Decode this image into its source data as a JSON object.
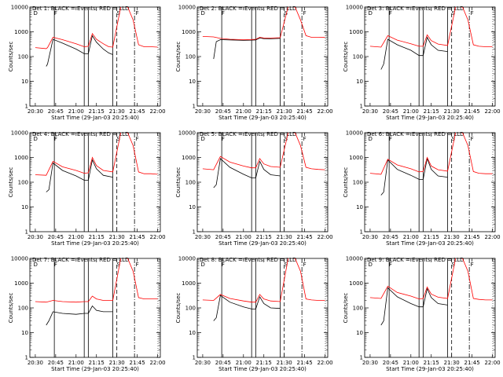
{
  "figure": {
    "x_axis_label": "Start Time (29-Jan-03 20:25:40)",
    "y_axis_label": "Counts/sec",
    "x_tick_labels": [
      "20:30",
      "20:45",
      "21:00",
      "21:15",
      "21:30",
      "21:45",
      "22:00"
    ],
    "y_tick_labels": [
      "1",
      "10",
      "100",
      "1000",
      "10000"
    ],
    "colors": {
      "events": "#000000",
      "lld": "#ff0000"
    }
  },
  "chart_data": [
    {
      "type": "line",
      "title": "Det 1: BLACK = Events, RED = LLD",
      "xlabel": "Start Time (29-Jan-03 20:25:40)",
      "ylabel": "Counts/sec",
      "xlim": [
        "20:26",
        "22:02"
      ],
      "ylim": [
        1,
        10000
      ],
      "yscale": "log",
      "markers": [
        "D",
        "F",
        "S",
        "F"
      ],
      "series": [
        {
          "name": "Events",
          "color": "#000000",
          "x": [
            "20:30",
            "20:38",
            "20:39",
            "20:43",
            "20:50",
            "21:00",
            "21:06",
            "21:09",
            "21:12",
            "21:15",
            "21:20",
            "21:24",
            "21:27"
          ],
          "y": [
            null,
            40,
            50,
            500,
            350,
            200,
            130,
            130,
            700,
            380,
            200,
            140,
            120
          ]
        },
        {
          "name": "LLD",
          "color": "#ff0000",
          "x": [
            "20:30",
            "20:38",
            "20:39",
            "20:43",
            "20:50",
            "21:00",
            "21:06",
            "21:09",
            "21:12",
            "21:15",
            "21:20",
            "21:24",
            "21:27",
            "21:33",
            "21:38",
            "21:42",
            "21:46",
            "21:50",
            "21:55",
            "22:00"
          ],
          "y": [
            230,
            210,
            230,
            600,
            480,
            330,
            250,
            260,
            850,
            500,
            330,
            250,
            240,
            11000,
            10000,
            3000,
            300,
            250,
            250,
            240
          ]
        }
      ]
    },
    {
      "type": "line",
      "title": "Det 2: BLACK = Events, RED = LLD",
      "xlabel": "Start Time (29-Jan-03 20:25:40)",
      "ylabel": "Counts/sec",
      "xlim": [
        "20:26",
        "22:02"
      ],
      "ylim": [
        1,
        10000
      ],
      "yscale": "log",
      "markers": [
        "D",
        "F",
        "S",
        "F"
      ],
      "series": [
        {
          "name": "Events",
          "color": "#000000",
          "x": [
            "20:38",
            "20:40",
            "20:43",
            "20:50",
            "21:00",
            "21:06",
            "21:09",
            "21:12",
            "21:15",
            "21:20",
            "21:27"
          ],
          "y": [
            80,
            400,
            480,
            470,
            450,
            460,
            470,
            560,
            530,
            520,
            540
          ]
        },
        {
          "name": "LLD",
          "color": "#ff0000",
          "x": [
            "20:30",
            "20:38",
            "20:43",
            "20:50",
            "21:00",
            "21:06",
            "21:09",
            "21:12",
            "21:15",
            "21:20",
            "21:27",
            "21:33",
            "21:38",
            "21:42",
            "21:46",
            "21:50",
            "21:55",
            "22:00"
          ],
          "y": [
            650,
            620,
            540,
            500,
            480,
            490,
            500,
            600,
            560,
            560,
            580,
            11000,
            10000,
            3000,
            700,
            600,
            600,
            590
          ]
        }
      ]
    },
    {
      "type": "line",
      "title": "Det 3: BLACK = Events, RED = LLD",
      "xlabel": "Start Time (29-Jan-03 20:25:40)",
      "ylabel": "Counts/sec",
      "xlim": [
        "20:26",
        "22:02"
      ],
      "ylim": [
        1,
        10000
      ],
      "yscale": "log",
      "markers": [
        "D",
        "F",
        "S",
        "F"
      ],
      "series": [
        {
          "name": "Events",
          "color": "#000000",
          "x": [
            "20:38",
            "20:40",
            "20:43",
            "20:50",
            "21:00",
            "21:06",
            "21:09",
            "21:12",
            "21:15",
            "21:20",
            "21:27"
          ],
          "y": [
            30,
            50,
            500,
            300,
            180,
            110,
            110,
            600,
            300,
            180,
            160
          ]
        },
        {
          "name": "LLD",
          "color": "#ff0000",
          "x": [
            "20:30",
            "20:38",
            "20:43",
            "20:50",
            "21:00",
            "21:06",
            "21:09",
            "21:12",
            "21:15",
            "21:20",
            "21:27",
            "21:33",
            "21:38",
            "21:42",
            "21:46",
            "21:50",
            "21:55",
            "22:00"
          ],
          "y": [
            260,
            240,
            700,
            460,
            330,
            260,
            260,
            750,
            440,
            320,
            280,
            11000,
            10000,
            3000,
            300,
            260,
            250,
            250
          ]
        }
      ]
    },
    {
      "type": "line",
      "title": "Det 4: BLACK = Events, RED = LLD",
      "xlabel": "Start Time (29-Jan-03 20:25:40)",
      "ylabel": "Counts/sec",
      "xlim": [
        "20:26",
        "22:02"
      ],
      "ylim": [
        1,
        10000
      ],
      "yscale": "log",
      "markers": [
        "D",
        "F",
        "S",
        "F"
      ],
      "series": [
        {
          "name": "Events",
          "color": "#000000",
          "x": [
            "20:38",
            "20:40",
            "20:43",
            "20:50",
            "21:00",
            "21:06",
            "21:09",
            "21:12",
            "21:15",
            "21:20",
            "21:27"
          ],
          "y": [
            40,
            50,
            600,
            300,
            180,
            120,
            120,
            800,
            350,
            190,
            160
          ]
        },
        {
          "name": "LLD",
          "color": "#ff0000",
          "x": [
            "20:30",
            "20:38",
            "20:43",
            "20:50",
            "21:00",
            "21:06",
            "21:09",
            "21:12",
            "21:15",
            "21:20",
            "21:27",
            "21:33",
            "21:38",
            "21:42",
            "21:46",
            "21:50",
            "21:55",
            "22:00"
          ],
          "y": [
            200,
            190,
            700,
            420,
            300,
            230,
            240,
            1000,
            470,
            300,
            260,
            11000,
            10000,
            3000,
            260,
            220,
            220,
            210
          ]
        }
      ]
    },
    {
      "type": "line",
      "title": "Det 5: BLACK = Events, RED = LLD",
      "xlabel": "Start Time (29-Jan-03 20:25:40)",
      "ylabel": "Counts/sec",
      "xlim": [
        "20:26",
        "22:02"
      ],
      "ylim": [
        1,
        10000
      ],
      "yscale": "log",
      "markers": [
        "D",
        "F",
        "S",
        "F"
      ],
      "series": [
        {
          "name": "Events",
          "color": "#000000",
          "x": [
            "20:38",
            "20:40",
            "20:43",
            "20:50",
            "21:00",
            "21:06",
            "21:09",
            "21:12",
            "21:15",
            "21:20",
            "21:27"
          ],
          "y": [
            60,
            80,
            900,
            400,
            210,
            150,
            150,
            700,
            330,
            200,
            180
          ]
        },
        {
          "name": "LLD",
          "color": "#ff0000",
          "x": [
            "20:30",
            "20:38",
            "20:43",
            "20:50",
            "21:00",
            "21:06",
            "21:09",
            "21:12",
            "21:15",
            "21:20",
            "21:27",
            "21:33",
            "21:38",
            "21:42",
            "21:46",
            "21:50",
            "21:55",
            "22:00"
          ],
          "y": [
            350,
            320,
            1100,
            650,
            450,
            380,
            380,
            900,
            550,
            430,
            400,
            11000,
            10000,
            3000,
            400,
            350,
            330,
            320
          ]
        }
      ]
    },
    {
      "type": "line",
      "title": "Det 6: BLACK = Events, RED = LLD",
      "xlabel": "Start Time (29-Jan-03 20:25:40)",
      "ylabel": "Counts/sec",
      "xlim": [
        "20:26",
        "22:02"
      ],
      "ylim": [
        1,
        10000
      ],
      "yscale": "log",
      "markers": [
        "D",
        "F",
        "S",
        "F"
      ],
      "series": [
        {
          "name": "Events",
          "color": "#000000",
          "x": [
            "20:38",
            "20:40",
            "20:43",
            "20:50",
            "21:00",
            "21:06",
            "21:09",
            "21:12",
            "21:15",
            "21:20",
            "21:27"
          ],
          "y": [
            30,
            40,
            800,
            330,
            190,
            130,
            130,
            900,
            330,
            180,
            160
          ]
        },
        {
          "name": "LLD",
          "color": "#ff0000",
          "x": [
            "20:30",
            "20:38",
            "20:43",
            "20:50",
            "21:00",
            "21:06",
            "21:09",
            "21:12",
            "21:15",
            "21:20",
            "21:27",
            "21:33",
            "21:38",
            "21:42",
            "21:46",
            "21:50",
            "21:55",
            "22:00"
          ],
          "y": [
            230,
            210,
            850,
            500,
            350,
            260,
            270,
            1000,
            450,
            320,
            280,
            11000,
            10000,
            3000,
            270,
            230,
            220,
            220
          ]
        }
      ]
    },
    {
      "type": "line",
      "title": "Det 7: BLACK = Events, RED = LLD",
      "xlabel": "Start Time (29-Jan-03 20:25:40)",
      "ylabel": "Counts/sec",
      "xlim": [
        "20:26",
        "22:02"
      ],
      "ylim": [
        1,
        10000
      ],
      "yscale": "log",
      "markers": [
        "D",
        "F",
        "S",
        "F"
      ],
      "series": [
        {
          "name": "Events",
          "color": "#000000",
          "x": [
            "20:38",
            "20:40",
            "20:43",
            "20:50",
            "21:00",
            "21:06",
            "21:09",
            "21:12",
            "21:15",
            "21:20",
            "21:27"
          ],
          "y": [
            20,
            30,
            70,
            60,
            55,
            60,
            60,
            120,
            80,
            70,
            70
          ]
        },
        {
          "name": "LLD",
          "color": "#ff0000",
          "x": [
            "20:30",
            "20:38",
            "20:43",
            "20:50",
            "21:00",
            "21:06",
            "21:09",
            "21:12",
            "21:15",
            "21:20",
            "21:27",
            "21:33",
            "21:38",
            "21:42",
            "21:46",
            "21:50",
            "21:55",
            "22:00"
          ],
          "y": [
            180,
            170,
            200,
            180,
            170,
            180,
            180,
            300,
            230,
            200,
            200,
            11000,
            10000,
            3000,
            260,
            230,
            230,
            230
          ]
        }
      ]
    },
    {
      "type": "line",
      "title": "Det 8: BLACK = Events, RED = LLD",
      "xlabel": "Start Time (29-Jan-03 20:25:40)",
      "ylabel": "Counts/sec",
      "xlim": [
        "20:26",
        "22:02"
      ],
      "ylim": [
        1,
        10000
      ],
      "yscale": "log",
      "markers": [
        "D",
        "F",
        "S",
        "F"
      ],
      "series": [
        {
          "name": "Events",
          "color": "#000000",
          "x": [
            "20:38",
            "20:40",
            "20:43",
            "20:50",
            "21:00",
            "21:06",
            "21:09",
            "21:12",
            "21:15",
            "21:20",
            "21:27"
          ],
          "y": [
            30,
            40,
            320,
            170,
            110,
            90,
            90,
            280,
            150,
            100,
            95
          ]
        },
        {
          "name": "LLD",
          "color": "#ff0000",
          "x": [
            "20:30",
            "20:38",
            "20:43",
            "20:50",
            "21:00",
            "21:06",
            "21:09",
            "21:12",
            "21:15",
            "21:20",
            "21:27",
            "21:33",
            "21:38",
            "21:42",
            "21:46",
            "21:50",
            "21:55",
            "22:00"
          ],
          "y": [
            210,
            200,
            350,
            240,
            190,
            170,
            170,
            350,
            230,
            190,
            180,
            11000,
            10000,
            3000,
            230,
            210,
            200,
            200
          ]
        }
      ]
    },
    {
      "type": "line",
      "title": "Det 9: BLACK = Events, RED = LLD",
      "xlabel": "Start Time (29-Jan-03 20:25:40)",
      "ylabel": "Counts/sec",
      "xlim": [
        "20:26",
        "22:02"
      ],
      "ylim": [
        1,
        10000
      ],
      "yscale": "log",
      "markers": [
        "D",
        "F",
        "S",
        "F"
      ],
      "series": [
        {
          "name": "Events",
          "color": "#000000",
          "x": [
            "20:38",
            "20:40",
            "20:43",
            "20:50",
            "21:00",
            "21:06",
            "21:09",
            "21:12",
            "21:15",
            "21:20",
            "21:27"
          ],
          "y": [
            20,
            30,
            650,
            280,
            150,
            110,
            110,
            600,
            260,
            150,
            130
          ]
        },
        {
          "name": "LLD",
          "color": "#ff0000",
          "x": [
            "20:30",
            "20:38",
            "20:43",
            "20:50",
            "21:00",
            "21:06",
            "21:09",
            "21:12",
            "21:15",
            "21:20",
            "21:27",
            "21:33",
            "21:38",
            "21:42",
            "21:46",
            "21:50",
            "21:55",
            "22:00"
          ],
          "y": [
            260,
            240,
            750,
            420,
            300,
            230,
            240,
            700,
            360,
            270,
            240,
            11000,
            10000,
            3000,
            240,
            220,
            210,
            210
          ]
        }
      ]
    }
  ]
}
